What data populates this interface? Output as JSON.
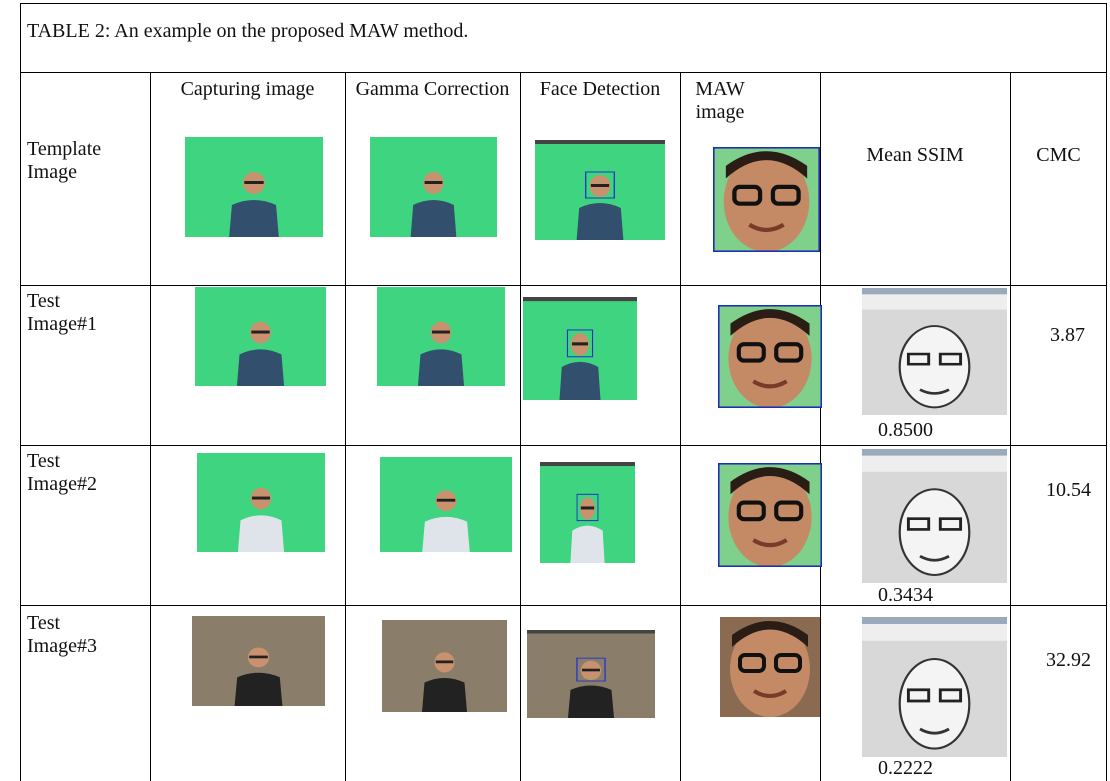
{
  "table": {
    "caption": "TABLE 2: An example on the proposed MAW method.",
    "headers": [
      "Capturing image",
      "Gamma Correction",
      "Face Detection",
      "MAW image",
      "Mean SSIM",
      "CMC"
    ],
    "rows": [
      {
        "label": "Template Image"
      },
      {
        "label": "Test Image#1",
        "mean_ssim": "0.8500",
        "cmc": "3.87"
      },
      {
        "label": "Test Image#2",
        "mean_ssim": "0.3434",
        "cmc": "10.54"
      },
      {
        "label": "Test Image#3",
        "mean_ssim": "0.2222",
        "cmc": "32.92"
      }
    ]
  }
}
